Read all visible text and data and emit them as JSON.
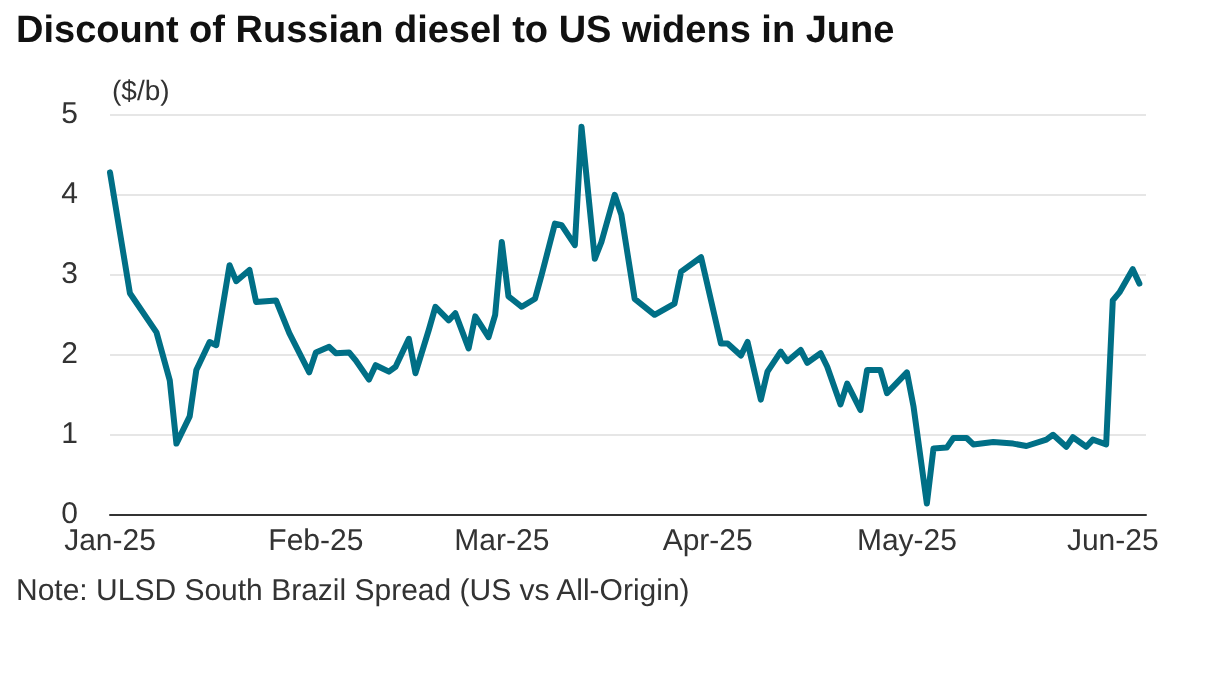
{
  "chart_data": {
    "type": "line",
    "title": "Discount of Russian diesel to US widens in June",
    "ylabel": "($/b)",
    "annotations": [
      "Note: ULSD South Brazil Spread (US vs All-Origin)"
    ],
    "x": [
      "2025-01-01",
      "2025-01-04",
      "2025-01-08",
      "2025-01-10",
      "2025-01-11",
      "2025-01-13",
      "2025-01-14",
      "2025-01-16",
      "2025-01-17",
      "2025-01-19",
      "2025-01-20",
      "2025-01-22",
      "2025-01-23",
      "2025-01-26",
      "2025-01-28",
      "2025-01-31",
      "2025-02-01",
      "2025-02-03",
      "2025-02-04",
      "2025-02-06",
      "2025-02-07",
      "2025-02-09",
      "2025-02-10",
      "2025-02-12",
      "2025-02-13",
      "2025-02-15",
      "2025-02-16",
      "2025-02-18",
      "2025-02-19",
      "2025-02-21",
      "2025-02-22",
      "2025-02-24",
      "2025-02-25",
      "2025-02-27",
      "2025-02-28",
      "2025-03-01",
      "2025-03-02",
      "2025-03-04",
      "2025-03-06",
      "2025-03-07",
      "2025-03-09",
      "2025-03-10",
      "2025-03-12",
      "2025-03-13",
      "2025-03-15",
      "2025-03-16",
      "2025-03-18",
      "2025-03-19",
      "2025-03-21",
      "2025-03-24",
      "2025-03-27",
      "2025-03-28",
      "2025-03-31",
      "2025-04-03",
      "2025-04-04",
      "2025-04-06",
      "2025-04-07",
      "2025-04-09",
      "2025-04-10",
      "2025-04-12",
      "2025-04-13",
      "2025-04-15",
      "2025-04-16",
      "2025-04-18",
      "2025-04-19",
      "2025-04-21",
      "2025-04-22",
      "2025-04-24",
      "2025-04-25",
      "2025-04-27",
      "2025-04-28",
      "2025-05-01",
      "2025-05-02",
      "2025-05-04",
      "2025-05-05",
      "2025-05-07",
      "2025-05-08",
      "2025-05-10",
      "2025-05-11",
      "2025-05-14",
      "2025-05-17",
      "2025-05-19",
      "2025-05-22",
      "2025-05-23",
      "2025-05-25",
      "2025-05-26",
      "2025-05-28",
      "2025-05-29",
      "2025-05-31",
      "2025-06-01",
      "2025-06-02",
      "2025-06-04",
      "2025-06-05"
    ],
    "series": [
      {
        "color": "#006f86",
        "values": [
          4.27,
          2.76,
          2.27,
          1.67,
          0.88,
          1.22,
          1.8,
          2.15,
          2.11,
          3.11,
          2.91,
          3.05,
          2.65,
          2.67,
          2.26,
          1.77,
          2.02,
          2.09,
          2.01,
          2.02,
          1.92,
          1.68,
          1.86,
          1.78,
          1.84,
          2.19,
          1.76,
          2.3,
          2.59,
          2.42,
          2.51,
          2.07,
          2.47,
          2.21,
          2.49,
          3.4,
          2.72,
          2.59,
          2.69,
          2.99,
          3.63,
          3.61,
          3.36,
          4.84,
          3.19,
          3.4,
          3.99,
          3.74,
          2.69,
          2.49,
          2.63,
          3.03,
          3.21,
          2.13,
          2.13,
          1.98,
          2.15,
          1.43,
          1.78,
          2.03,
          1.91,
          2.05,
          1.89,
          2.01,
          1.84,
          1.37,
          1.63,
          1.3,
          1.8,
          1.8,
          1.51,
          1.77,
          1.34,
          0.13,
          0.82,
          0.83,
          0.95,
          0.95,
          0.87,
          0.9,
          0.88,
          0.85,
          0.93,
          0.99,
          0.84,
          0.96,
          0.84,
          0.93,
          0.87,
          2.67,
          2.77,
          3.06,
          2.88
        ]
      }
    ],
    "xlim": [
      "2025-01-01",
      "2025-06-06"
    ],
    "xticks": [
      {
        "value": "2025-01-01",
        "label": "Jan-25"
      },
      {
        "value": "2025-02-01",
        "label": "Feb-25"
      },
      {
        "value": "2025-03-01",
        "label": "Mar-25"
      },
      {
        "value": "2025-04-01",
        "label": "Apr-25"
      },
      {
        "value": "2025-05-01",
        "label": "May-25"
      },
      {
        "value": "2025-06-01",
        "label": "Jun-25"
      }
    ],
    "ylim": [
      0,
      5
    ],
    "yticks": [
      0,
      1,
      2,
      3,
      4,
      5
    ],
    "grid": "y",
    "marker": "none",
    "line_style": "solid"
  }
}
